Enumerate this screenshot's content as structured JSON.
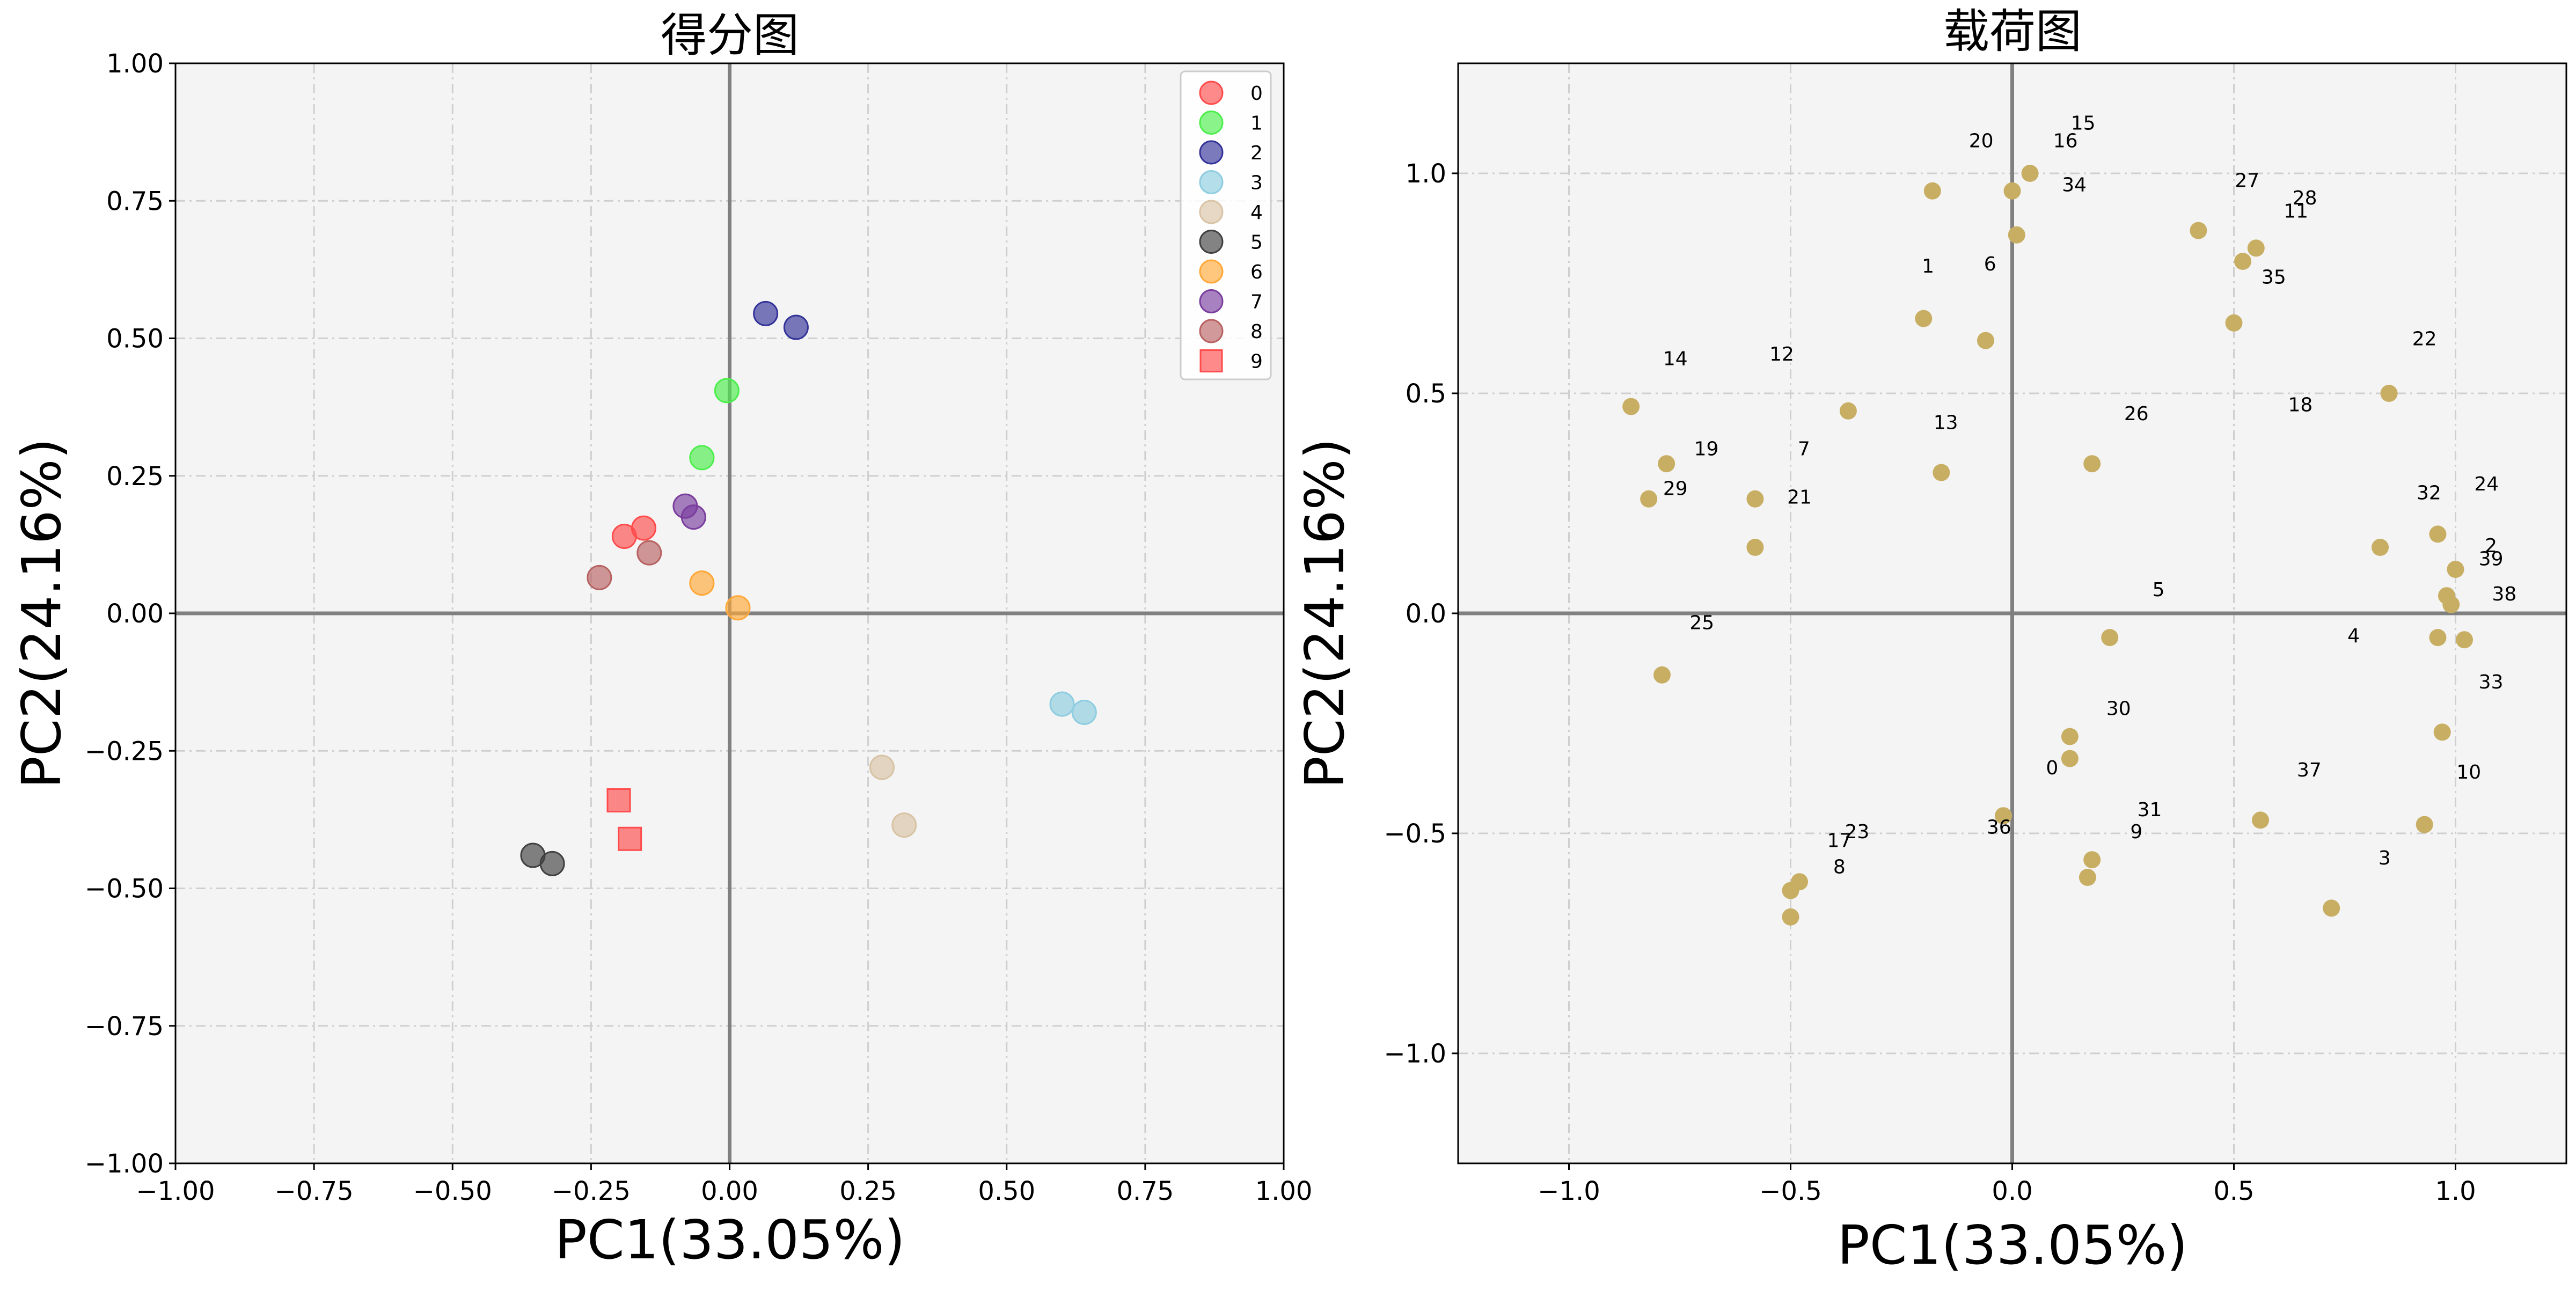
{
  "chart_data": [
    {
      "type": "scatter",
      "title": "得分图",
      "xlabel": "PC1(33.05%)",
      "ylabel": "PC2(24.16%)",
      "xlim": [
        -1.0,
        1.0
      ],
      "ylim": [
        -1.0,
        1.0
      ],
      "xticks": [
        -1.0,
        -0.75,
        -0.5,
        -0.25,
        0.0,
        0.25,
        0.5,
        0.75,
        1.0
      ],
      "yticks": [
        -1.0,
        -0.75,
        -0.5,
        -0.25,
        0.0,
        0.25,
        0.5,
        0.75,
        1.0
      ],
      "xtick_labels": [
        "−1.00",
        "−0.75",
        "−0.50",
        "−0.25",
        "0.00",
        "0.25",
        "0.50",
        "0.75",
        "1.00"
      ],
      "ytick_labels": [
        "−1.00",
        "−0.75",
        "−0.50",
        "−0.25",
        "0.00",
        "0.25",
        "0.50",
        "0.75",
        "1.00"
      ],
      "grid": true,
      "legend_position": "top-right",
      "series": [
        {
          "name": "0",
          "color": "#ff4b4b",
          "marker": "circle",
          "points": [
            [
              -0.19,
              0.14
            ],
            [
              -0.155,
              0.155
            ]
          ]
        },
        {
          "name": "1",
          "color": "#4cee4c",
          "marker": "circle",
          "points": [
            [
              -0.005,
              0.405
            ],
            [
              -0.05,
              0.283
            ]
          ]
        },
        {
          "name": "2",
          "color": "#33339a",
          "marker": "circle",
          "points": [
            [
              0.065,
              0.545
            ],
            [
              0.12,
              0.52
            ]
          ]
        },
        {
          "name": "3",
          "color": "#8ecde0",
          "marker": "circle",
          "points": [
            [
              0.6,
              -0.165
            ],
            [
              0.64,
              -0.18
            ]
          ]
        },
        {
          "name": "4",
          "color": "#d8c3a5",
          "marker": "circle",
          "points": [
            [
              0.275,
              -0.28
            ],
            [
              0.315,
              -0.385
            ]
          ]
        },
        {
          "name": "5",
          "color": "#404040",
          "marker": "circle",
          "points": [
            [
              -0.355,
              -0.44
            ],
            [
              -0.32,
              -0.455
            ]
          ]
        },
        {
          "name": "6",
          "color": "#ffa838",
          "marker": "circle",
          "points": [
            [
              -0.05,
              0.055
            ],
            [
              0.015,
              0.01
            ]
          ]
        },
        {
          "name": "7",
          "color": "#7a3e9e",
          "marker": "circle",
          "points": [
            [
              -0.08,
              0.195
            ],
            [
              -0.065,
              0.175
            ]
          ]
        },
        {
          "name": "8",
          "color": "#b86262",
          "marker": "circle",
          "points": [
            [
              -0.235,
              0.065
            ],
            [
              -0.145,
              0.11
            ]
          ]
        },
        {
          "name": "9",
          "color": "#ff4b4b",
          "marker": "square",
          "points": [
            [
              -0.2,
              -0.34
            ],
            [
              -0.18,
              -0.41
            ]
          ]
        }
      ]
    },
    {
      "type": "scatter",
      "title": "载荷图",
      "xlabel": "PC1(33.05%)",
      "ylabel": "PC2(24.16%)",
      "xlim": [
        -1.25,
        1.25
      ],
      "ylim": [
        -1.25,
        1.25
      ],
      "xticks": [
        -1.0,
        -0.5,
        0.0,
        0.5,
        1.0
      ],
      "yticks": [
        -1.0,
        -0.5,
        0.0,
        0.5,
        1.0
      ],
      "xtick_labels": [
        "−1.0",
        "−0.5",
        "0.0",
        "0.5",
        "1.0"
      ],
      "ytick_labels": [
        "−1.0",
        "−0.5",
        "0.0",
        "0.5",
        "1.0"
      ],
      "grid": true,
      "point_color": "#c8ae62",
      "points": [
        {
          "x": 0.13,
          "y": -0.33
        },
        {
          "x": -0.2,
          "y": 0.67
        },
        {
          "x": 1.0,
          "y": 0.1
        },
        {
          "x": 0.72,
          "y": -0.67
        },
        {
          "x": 0.96,
          "y": -0.055
        },
        {
          "x": 0.22,
          "y": -0.055
        },
        {
          "x": -0.06,
          "y": 0.62
        },
        {
          "x": -0.58,
          "y": 0.26
        },
        {
          "x": -0.48,
          "y": -0.61
        },
        {
          "x": 0.17,
          "y": -0.6
        },
        {
          "x": 0.93,
          "y": -0.48
        },
        {
          "x": 0.5,
          "y": 0.66
        },
        {
          "x": -0.37,
          "y": 0.46
        },
        {
          "x": -0.16,
          "y": 0.32
        },
        {
          "x": -0.86,
          "y": 0.47
        },
        {
          "x": 0.04,
          "y": 1.0
        },
        {
          "x": 0.0,
          "y": 0.96
        },
        {
          "x": -0.5,
          "y": -0.69
        },
        {
          "x": 0.85,
          "y": 0.5
        },
        {
          "x": -0.78,
          "y": 0.34
        },
        {
          "x": -0.18,
          "y": 0.96
        },
        {
          "x": -0.58,
          "y": 0.15
        },
        {
          "x": 0.83,
          "y": 0.15
        },
        {
          "x": -0.5,
          "y": -0.63
        },
        {
          "x": 0.99,
          "y": 0.02
        },
        {
          "x": -0.79,
          "y": -0.14
        },
        {
          "x": 0.18,
          "y": 0.34
        },
        {
          "x": 0.55,
          "y": 0.83
        },
        {
          "x": 0.42,
          "y": 0.87
        },
        {
          "x": -0.82,
          "y": 0.26
        },
        {
          "x": 0.13,
          "y": -0.28
        },
        {
          "x": 0.18,
          "y": -0.56
        },
        {
          "x": 0.96,
          "y": 0.18
        },
        {
          "x": 0.97,
          "y": -0.27
        },
        {
          "x": 0.01,
          "y": 0.86
        },
        {
          "x": 0.52,
          "y": 0.8
        },
        {
          "x": -0.02,
          "y": -0.46
        },
        {
          "x": 0.56,
          "y": -0.47
        },
        {
          "x": 1.02,
          "y": -0.06
        },
        {
          "x": 0.98,
          "y": 0.04
        }
      ],
      "labels": [
        {
          "text": "0",
          "x": 0.09,
          "y": -0.35
        },
        {
          "text": "1",
          "x": -0.19,
          "y": 0.79
        },
        {
          "text": "2",
          "x": 1.08,
          "y": 0.155
        },
        {
          "text": "3",
          "x": 0.84,
          "y": -0.555
        },
        {
          "text": "4",
          "x": 0.77,
          "y": -0.05
        },
        {
          "text": "5",
          "x": 0.33,
          "y": 0.055
        },
        {
          "text": "6",
          "x": -0.05,
          "y": 0.795
        },
        {
          "text": "7",
          "x": -0.47,
          "y": 0.375
        },
        {
          "text": "8",
          "x": -0.39,
          "y": -0.575
        },
        {
          "text": "9",
          "x": 0.28,
          "y": -0.495
        },
        {
          "text": "10",
          "x": 1.03,
          "y": -0.36
        },
        {
          "text": "11",
          "x": 0.64,
          "y": 0.915
        },
        {
          "text": "12",
          "x": -0.52,
          "y": 0.59
        },
        {
          "text": "13",
          "x": -0.15,
          "y": 0.435
        },
        {
          "text": "14",
          "x": -0.76,
          "y": 0.58
        },
        {
          "text": "15",
          "x": 0.16,
          "y": 1.115
        },
        {
          "text": "16",
          "x": 0.12,
          "y": 1.075
        },
        {
          "text": "17",
          "x": -0.39,
          "y": -0.515
        },
        {
          "text": "18",
          "x": 0.65,
          "y": 0.475
        },
        {
          "text": "19",
          "x": -0.69,
          "y": 0.375
        },
        {
          "text": "20",
          "x": -0.07,
          "y": 1.075
        },
        {
          "text": "21",
          "x": -0.48,
          "y": 0.265
        },
        {
          "text": "22",
          "x": 0.93,
          "y": 0.625
        },
        {
          "text": "23",
          "x": -0.35,
          "y": -0.495
        },
        {
          "text": "24",
          "x": 1.07,
          "y": 0.295
        },
        {
          "text": "25",
          "x": -0.7,
          "y": -0.02
        },
        {
          "text": "26",
          "x": 0.28,
          "y": 0.455
        },
        {
          "text": "27",
          "x": 0.53,
          "y": 0.985
        },
        {
          "text": "28",
          "x": 0.66,
          "y": 0.945
        },
        {
          "text": "29",
          "x": -0.76,
          "y": 0.285
        },
        {
          "text": "30",
          "x": 0.24,
          "y": -0.215
        },
        {
          "text": "31",
          "x": 0.31,
          "y": -0.445
        },
        {
          "text": "32",
          "x": 0.94,
          "y": 0.275
        },
        {
          "text": "33",
          "x": 1.08,
          "y": -0.155
        },
        {
          "text": "34",
          "x": 0.14,
          "y": 0.975
        },
        {
          "text": "35",
          "x": 0.59,
          "y": 0.765
        },
        {
          "text": "36",
          "x": -0.03,
          "y": -0.485
        },
        {
          "text": "37",
          "x": 0.67,
          "y": -0.355
        },
        {
          "text": "38",
          "x": 1.11,
          "y": 0.045
        },
        {
          "text": "39",
          "x": 1.08,
          "y": 0.125
        }
      ]
    }
  ]
}
